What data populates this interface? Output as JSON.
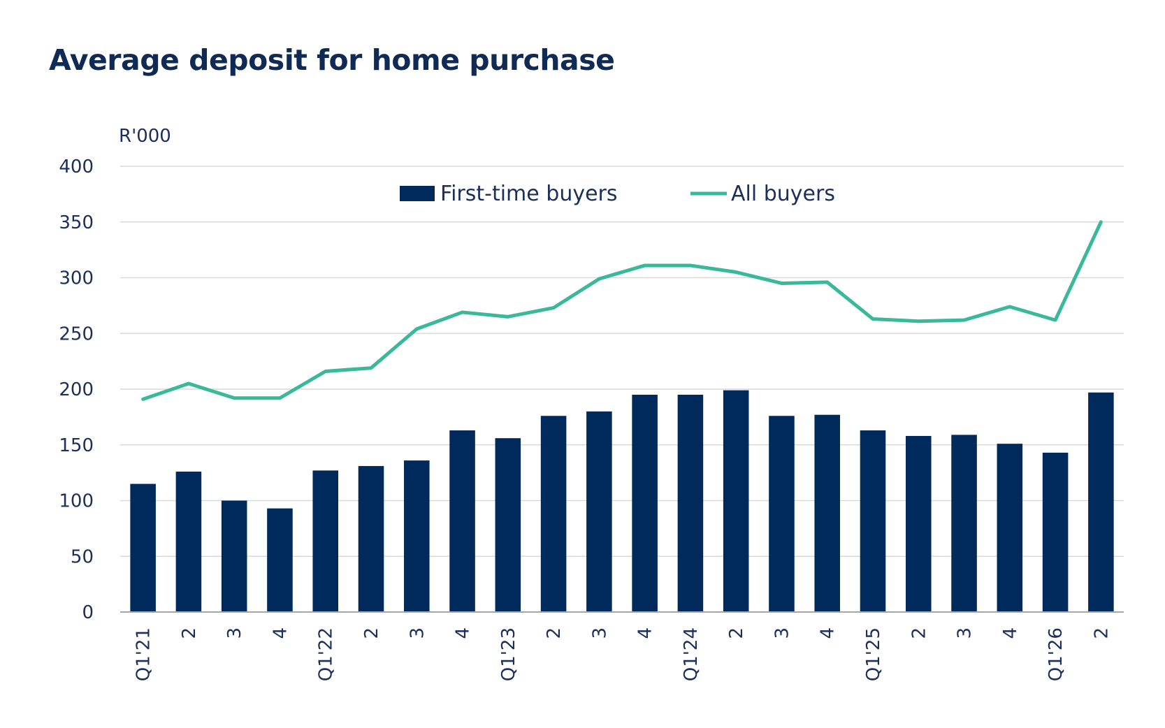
{
  "colors": {
    "bar": "#002a5c",
    "line": "#3ab99a",
    "grid": "#d9d9d9",
    "axis": "#a6a6a6"
  },
  "chart_data": {
    "type": "bar",
    "title": "Average deposit for home purchase",
    "ylabel": "R'000",
    "xlabel": "",
    "ylim": [
      0,
      400
    ],
    "yticks": [
      0,
      50,
      100,
      150,
      200,
      250,
      300,
      350,
      400
    ],
    "grid": true,
    "legend_position": "top",
    "categories": [
      "Q1'21",
      "2",
      "3",
      "4",
      "Q1'22",
      "2",
      "3",
      "4",
      "Q1'23",
      "2",
      "3",
      "4",
      "Q1'24",
      "2",
      "3",
      "4",
      "Q1'25",
      "2",
      "3",
      "4",
      "Q1'26",
      "2"
    ],
    "series": [
      {
        "name": "First-time buyers",
        "type": "bar",
        "values": [
          115,
          126,
          100,
          93,
          127,
          131,
          136,
          163,
          156,
          176,
          180,
          195,
          195,
          199,
          176,
          177,
          163,
          158,
          159,
          151,
          143,
          197
        ]
      },
      {
        "name": "All buyers",
        "type": "line",
        "values": [
          191,
          205,
          192,
          192,
          216,
          219,
          254,
          269,
          265,
          273,
          299,
          311,
          311,
          305,
          295,
          296,
          263,
          261,
          262,
          274,
          262,
          350
        ]
      }
    ]
  }
}
